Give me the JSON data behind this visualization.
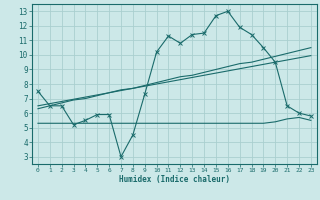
{
  "xlabel": "Humidex (Indice chaleur)",
  "background_color": "#cce8e8",
  "grid_color": "#aacfcf",
  "line_color": "#1a6b6b",
  "x_values": [
    0,
    1,
    2,
    3,
    4,
    5,
    6,
    7,
    8,
    9,
    10,
    11,
    12,
    13,
    14,
    15,
    16,
    17,
    18,
    19,
    20,
    21,
    22,
    23
  ],
  "line1_y": [
    7.5,
    6.5,
    6.5,
    5.2,
    5.5,
    5.9,
    5.9,
    3.0,
    4.5,
    7.3,
    10.2,
    11.3,
    10.8,
    11.4,
    11.5,
    12.7,
    13.0,
    11.9,
    11.4,
    10.5,
    9.5,
    6.5,
    6.0,
    5.8
  ],
  "line2_y": [
    6.3,
    6.5,
    6.7,
    6.9,
    7.0,
    7.2,
    7.4,
    7.6,
    7.7,
    7.9,
    8.1,
    8.3,
    8.5,
    8.6,
    8.8,
    9.0,
    9.2,
    9.4,
    9.5,
    9.7,
    9.9,
    10.1,
    10.3,
    10.5
  ],
  "line3_y": [
    6.5,
    6.65,
    6.8,
    6.95,
    7.1,
    7.25,
    7.4,
    7.55,
    7.7,
    7.85,
    8.0,
    8.15,
    8.3,
    8.45,
    8.6,
    8.75,
    8.9,
    9.05,
    9.2,
    9.35,
    9.5,
    9.65,
    9.8,
    9.95
  ],
  "line4_y": [
    5.3,
    5.3,
    5.3,
    5.3,
    5.3,
    5.3,
    5.3,
    5.3,
    5.3,
    5.3,
    5.3,
    5.3,
    5.3,
    5.3,
    5.3,
    5.3,
    5.3,
    5.3,
    5.3,
    5.3,
    5.4,
    5.6,
    5.7,
    5.5
  ],
  "xlim": [
    -0.5,
    23.5
  ],
  "ylim": [
    2.5,
    13.5
  ],
  "yticks": [
    3,
    4,
    5,
    6,
    7,
    8,
    9,
    10,
    11,
    12,
    13
  ],
  "xticks": [
    0,
    1,
    2,
    3,
    4,
    5,
    6,
    7,
    8,
    9,
    10,
    11,
    12,
    13,
    14,
    15,
    16,
    17,
    18,
    19,
    20,
    21,
    22,
    23
  ]
}
